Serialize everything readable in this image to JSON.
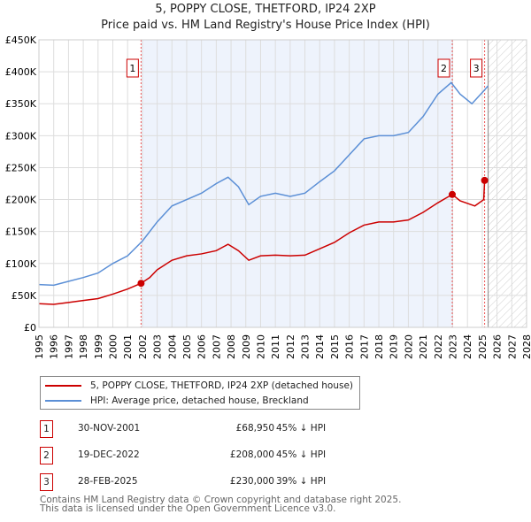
{
  "chart_data": {
    "type": "line",
    "title": "5, POPPY CLOSE, THETFORD, IP24 2XP",
    "subtitle": "Price paid vs. HM Land Registry's House Price Index (HPI)",
    "xlim": [
      1995,
      2028
    ],
    "ylim": [
      0,
      450000
    ],
    "x_ticks": [
      "1995",
      "1996",
      "1997",
      "1998",
      "1999",
      "2000",
      "2001",
      "2002",
      "2003",
      "2004",
      "2005",
      "2006",
      "2007",
      "2008",
      "2009",
      "2010",
      "2011",
      "2012",
      "2013",
      "2014",
      "2015",
      "2016",
      "2017",
      "2018",
      "2019",
      "2020",
      "2021",
      "2022",
      "2023",
      "2024",
      "2025",
      "2026",
      "2027",
      "2028"
    ],
    "y_ticks": [
      {
        "v": 0,
        "l": "£0"
      },
      {
        "v": 50000,
        "l": "£50K"
      },
      {
        "v": 100000,
        "l": "£100K"
      },
      {
        "v": 150000,
        "l": "£150K"
      },
      {
        "v": 200000,
        "l": "£200K"
      },
      {
        "v": 250000,
        "l": "£250K"
      },
      {
        "v": 300000,
        "l": "£300K"
      },
      {
        "v": 350000,
        "l": "£350K"
      },
      {
        "v": 400000,
        "l": "£400K"
      },
      {
        "v": 450000,
        "l": "£450K"
      }
    ],
    "series": [
      {
        "name": "5, POPPY CLOSE, THETFORD, IP24 2XP (detached house)",
        "color": "#cc0000",
        "x": [
          1995,
          1996,
          1997,
          1998,
          1999,
          2000,
          2001,
          2001.91,
          2002.5,
          2003,
          2004,
          2005,
          2006,
          2007,
          2007.8,
          2008.5,
          2009.2,
          2010,
          2011,
          2012,
          2013,
          2014,
          2015,
          2016,
          2017,
          2018,
          2019,
          2020,
          2021,
          2022,
          2022.97,
          2023.5,
          2024.5,
          2025.1,
          2025.16
        ],
        "y": [
          37000,
          36000,
          39000,
          42000,
          45000,
          52000,
          60000,
          68950,
          78000,
          90000,
          105000,
          112000,
          115000,
          120000,
          130000,
          120000,
          105000,
          112000,
          113000,
          112000,
          113000,
          123000,
          133000,
          148000,
          160000,
          165000,
          165000,
          168000,
          180000,
          195000,
          208000,
          198000,
          190000,
          200000,
          230000
        ]
      },
      {
        "name": "HPI: Average price, detached house, Breckland",
        "color": "#5b8fd6",
        "x": [
          1995,
          1996,
          1997,
          1998,
          1999,
          2000,
          2001,
          2002,
          2003,
          2004,
          2005,
          2006,
          2007,
          2007.8,
          2008.5,
          2009.2,
          2010,
          2011,
          2012,
          2013,
          2014,
          2015,
          2016,
          2017,
          2018,
          2019,
          2020,
          2021,
          2022,
          2022.9,
          2023.5,
          2024.3,
          2025.1,
          2025.4
        ],
        "y": [
          67000,
          66000,
          72000,
          78000,
          85000,
          100000,
          112000,
          135000,
          165000,
          190000,
          200000,
          210000,
          225000,
          235000,
          220000,
          192000,
          205000,
          210000,
          205000,
          210000,
          228000,
          245000,
          270000,
          295000,
          300000,
          300000,
          305000,
          330000,
          365000,
          383000,
          365000,
          350000,
          370000,
          378000
        ]
      }
    ],
    "sales": [
      {
        "n": "1",
        "x": 2001.91,
        "y": 68950
      },
      {
        "n": "2",
        "x": 2022.97,
        "y": 208000
      },
      {
        "n": "3",
        "x": 2025.16,
        "y": 230000
      }
    ],
    "forecast_from": 2025.4
  },
  "table": [
    {
      "n": "1",
      "date": "30-NOV-2001",
      "price": "£68,950",
      "hpi": "45% ↓ HPI"
    },
    {
      "n": "2",
      "date": "19-DEC-2022",
      "price": "£208,000",
      "hpi": "45% ↓ HPI"
    },
    {
      "n": "3",
      "date": "28-FEB-2025",
      "price": "£230,000",
      "hpi": "39% ↓ HPI"
    }
  ],
  "footer": [
    "Contains HM Land Registry data © Crown copyright and database right 2025.",
    "This data is licensed under the Open Government Licence v3.0."
  ]
}
